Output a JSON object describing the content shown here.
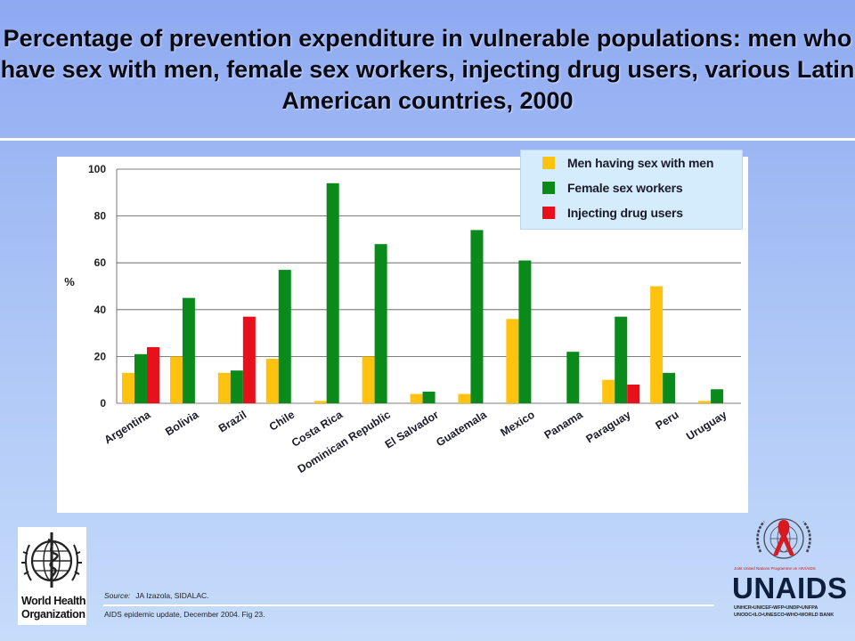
{
  "title": "Percentage of prevention expenditure in vulnerable populations: men who have sex with men, female sex workers, injecting drug users, various Latin American countries, 2000",
  "colors": {
    "msm": "#ffc20e",
    "fsw": "#0a8a1a",
    "idu": "#e8101a"
  },
  "chart_data": {
    "type": "bar",
    "title": "",
    "xlabel": "",
    "ylabel": "%",
    "ylim": [
      0,
      100
    ],
    "yticks": [
      0,
      20,
      40,
      60,
      80,
      100
    ],
    "grid": true,
    "legend_position": "top-right",
    "categories": [
      "Argentina",
      "Bolivia",
      "Brazil",
      "Chile",
      "Costa Rica",
      "Dominican Republic",
      "El Salvador",
      "Guatemala",
      "Mexico",
      "Panama",
      "Paraguay",
      "Peru",
      "Uruguay"
    ],
    "series": [
      {
        "name": "Men having sex with men",
        "color": "#ffc20e",
        "values": [
          13,
          20,
          13,
          19,
          1,
          20,
          4,
          4,
          36,
          0,
          10,
          50,
          1
        ]
      },
      {
        "name": "Female sex workers",
        "color": "#0a8a1a",
        "values": [
          21,
          45,
          14,
          57,
          94,
          68,
          5,
          74,
          61,
          22,
          37,
          13,
          6
        ]
      },
      {
        "name": "Injecting drug users",
        "color": "#e8101a",
        "values": [
          24,
          0,
          37,
          0,
          0,
          0,
          0,
          0,
          0,
          0,
          8,
          0,
          0
        ]
      }
    ]
  },
  "source": {
    "label": "Source:",
    "text": "JA Izazola, SIDALAC."
  },
  "publication": "AIDS epidemic update, December 2004.  Fig 23.",
  "who_logo": {
    "line1": "World Health",
    "line2": "Organization"
  },
  "unaids_logo": {
    "tagline": "Joint United Nations Programme on HIV/AIDS",
    "name": "UNAIDS",
    "cosponsors_line1": "UNHCR•UNICEF•WFP•UNDP•UNFPA",
    "cosponsors_line2": "UNODC•ILO•UNESCO•WHO•WORLD BANK"
  }
}
